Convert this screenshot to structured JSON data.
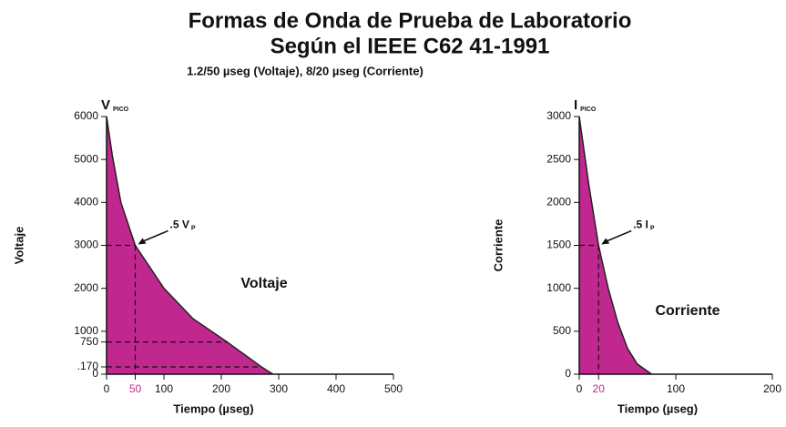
{
  "title": [
    "Formas de Onda de Prueba de Laboratorio",
    "Según el IEEE C62 41-1991"
  ],
  "subtitle": "1.2/50 µseg (Voltaje), 8/20 µseg (Corriente)",
  "chart_data": [
    {
      "type": "area",
      "ylabel": "Voltaje",
      "xlabel": "Tiempo (µseg)",
      "color": "#c0288f",
      "peak_label": "V",
      "peak_sub": "PICO",
      "curve_label": "Voltaje",
      "x": [
        0,
        10,
        25,
        50,
        100,
        150,
        210,
        270,
        290
      ],
      "values": [
        6000,
        5100,
        4000,
        3000,
        2000,
        1300,
        750,
        170,
        0
      ],
      "xlim": [
        0,
        500
      ],
      "xticks": [
        0,
        50,
        100,
        200,
        300,
        400,
        500
      ],
      "highlight_xtick": 50,
      "ylim": [
        0,
        6000
      ],
      "yticks": [
        0,
        {
          "value": 170,
          "label": ".170"
        },
        750,
        1000,
        2000,
        3000,
        4000,
        5000,
        6000
      ],
      "annotation": {
        "text": ".5 V",
        "sub": "P",
        "x": 50,
        "y": 3000
      },
      "guides": [
        {
          "x": 210,
          "y": 750
        },
        {
          "x": 270,
          "y": 170
        }
      ]
    },
    {
      "type": "area",
      "ylabel": "Corriente",
      "xlabel": "Tiempo (µseg)",
      "color": "#c0288f",
      "peak_label": "I",
      "peak_sub": "PICO",
      "curve_label": "Corriente",
      "x": [
        0,
        10,
        20,
        30,
        40,
        50,
        60,
        75
      ],
      "values": [
        3000,
        2200,
        1500,
        1000,
        600,
        300,
        120,
        0
      ],
      "xlim": [
        0,
        200
      ],
      "xticks": [
        0,
        20,
        100,
        200
      ],
      "highlight_xtick": 20,
      "ylim": [
        0,
        3000
      ],
      "yticks": [
        0,
        500,
        1000,
        1500,
        2000,
        2500,
        3000
      ],
      "annotation": {
        "text": ".5 I",
        "sub": "P",
        "x": 20,
        "y": 1500
      },
      "guides": []
    }
  ]
}
